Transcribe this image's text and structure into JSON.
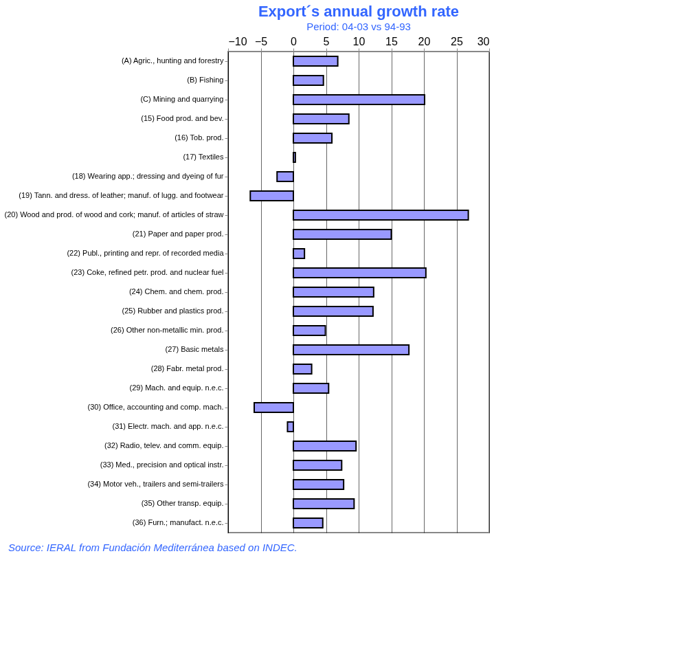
{
  "chart_data": {
    "type": "bar",
    "orientation": "horizontal",
    "title": "Export´s annual growth rate",
    "subtitle": "Period: 04-03 vs 94-93",
    "categories": [
      "(A) Agric., hunting and forestry",
      "(B) Fishing",
      "(C) Mining and quarrying",
      "(15) Food prod. and bev.",
      "(16) Tob. prod.",
      "(17) Textiles",
      "(18) Wearing app.; dressing and dyeing of fur",
      "(19) Tann. and dress. of leather; manuf. of lugg. and footwear",
      "(20) Wood and prod. of wood and cork; manuf. of articles of straw",
      "(21) Paper and paper prod.",
      "(22) Publ., printing and repr. of recorded media",
      "(23) Coke, refined petr. prod. and nuclear fuel",
      "(24) Chem. and chem. prod.",
      "(25) Rubber and plastics prod.",
      "(26) Other non-metallic min. prod.",
      "(27) Basic metals",
      "(28) Fabr. metal prod.",
      "(29) Mach. and equip. n.e.c.",
      "(30) Office, accounting and comp. mach.",
      "(31) Electr. mach. and app. n.e.c.",
      "(32) Radio, telev. and comm. equip.",
      "(33) Med., precision and optical instr.",
      "(34) Motor veh., trailers and semi-trailers",
      "(35) Other transp. equip.",
      "(36) Furn.; manufact. n.e.c."
    ],
    "values": [
      6.8,
      4.6,
      20.1,
      8.5,
      5.9,
      0.3,
      -2.5,
      -6.6,
      26.8,
      15.0,
      1.7,
      20.3,
      12.3,
      12.2,
      4.9,
      17.7,
      2.8,
      5.4,
      -6.0,
      -0.9,
      9.6,
      7.4,
      7.7,
      9.3,
      4.5
    ],
    "color": "#9999ff",
    "xlim": [
      -10,
      30
    ],
    "xticks": [
      -10,
      -5,
      0,
      5,
      10,
      15,
      20,
      25,
      30
    ],
    "grid": "x",
    "annotations": [
      "Source: IERAL from Fundación Mediterránea based on INDEC."
    ]
  }
}
